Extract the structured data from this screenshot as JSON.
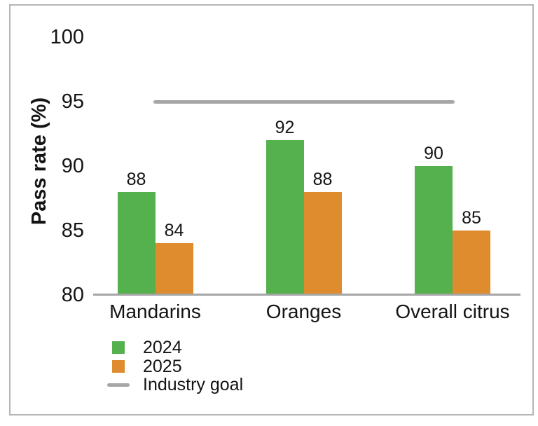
{
  "chart_data": {
    "type": "bar",
    "title": "",
    "xlabel": "",
    "ylabel": "Pass rate (%)",
    "categories": [
      "Mandarins",
      "Oranges",
      "Overall citrus"
    ],
    "series": [
      {
        "name": "2024",
        "color": "#55b14e",
        "values": [
          88,
          92,
          90
        ]
      },
      {
        "name": "2025",
        "color": "#de8c2d",
        "values": [
          84,
          88,
          85
        ]
      }
    ],
    "goal_line": {
      "name": "Industry goal",
      "value": 95,
      "color": "#a6a6a6"
    },
    "ylim": [
      80,
      100
    ],
    "yticks": [
      80,
      85,
      90,
      95,
      100
    ],
    "grid": false,
    "bar_value_labels": true,
    "legend_position": "bottom-left"
  },
  "colors": {
    "axis_line": "#a6a6a6",
    "frame_border": "#b5b5b5",
    "text": "#141414",
    "background": "#ffffff"
  }
}
